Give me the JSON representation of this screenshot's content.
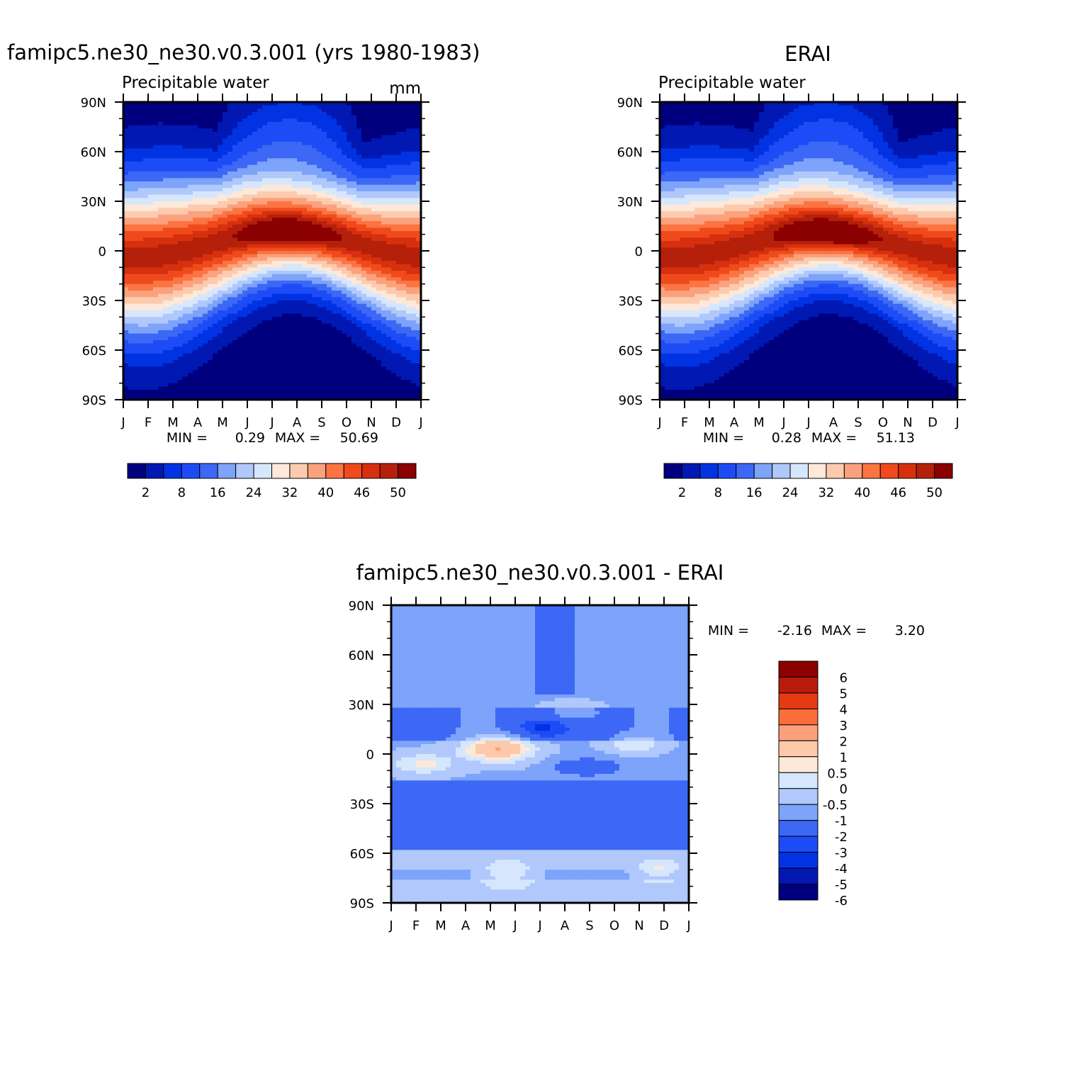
{
  "chart_data": [
    {
      "type": "heatmap",
      "title": "famipc5.ne30_ne30.v0.3.001 (yrs 1980-1983)",
      "left_label": "Precipitable water",
      "units": "mm",
      "x_tick_labels": [
        "J",
        "F",
        "M",
        "A",
        "M",
        "J",
        "J",
        "A",
        "S",
        "O",
        "N",
        "D",
        "J"
      ],
      "y_tick_labels": [
        "90N",
        "60N",
        "30N",
        "0",
        "30S",
        "60S",
        "90S"
      ],
      "ylim": [
        -90,
        90
      ],
      "min_label": "MIN =",
      "min_value": "0.29",
      "max_label": "MAX =",
      "max_value": "50.69",
      "colorbar_labels": [
        "2",
        "8",
        "16",
        "24",
        "32",
        "40",
        "46",
        "50"
      ],
      "peak_month": 6.6,
      "peak_lat": 9,
      "peak_value": 50.69,
      "min_value_num": 0.29
    },
    {
      "type": "heatmap",
      "title": "ERAI",
      "left_label": "Precipitable water",
      "x_tick_labels": [
        "J",
        "F",
        "M",
        "A",
        "M",
        "J",
        "J",
        "A",
        "S",
        "O",
        "N",
        "D",
        "J"
      ],
      "y_tick_labels": [
        "90N",
        "60N",
        "30N",
        "0",
        "30S",
        "60S",
        "90S"
      ],
      "ylim": [
        -90,
        90
      ],
      "min_label": "MIN =",
      "min_value": "0.28",
      "max_label": "MAX =",
      "max_value": "51.13",
      "colorbar_labels": [
        "2",
        "8",
        "16",
        "24",
        "32",
        "40",
        "46",
        "50"
      ],
      "peak_month": 6.8,
      "peak_lat": 7,
      "peak_value": 51.13,
      "min_value_num": 0.28
    },
    {
      "type": "heatmap",
      "title": "famipc5.ne30_ne30.v0.3.001 - ERAI",
      "x_tick_labels": [
        "J",
        "F",
        "M",
        "A",
        "M",
        "J",
        "J",
        "A",
        "S",
        "O",
        "N",
        "D",
        "J"
      ],
      "y_tick_labels": [
        "90N",
        "60N",
        "30N",
        "0",
        "30S",
        "60S",
        "90S"
      ],
      "ylim": [
        -90,
        90
      ],
      "min_label": "MIN =",
      "min_value": "-2.16",
      "max_label": "MAX =",
      "max_value": "3.20",
      "colorbar_labels": [
        "6",
        "5",
        "4",
        "3",
        "2",
        "1",
        "0.5",
        "0",
        "-0.5",
        "-1",
        "-2",
        "-3",
        "-4",
        "-5",
        "-6"
      ]
    }
  ],
  "palettes": {
    "absolute": [
      "#00007f",
      "#0118b2",
      "#0133e3",
      "#1d4cf7",
      "#3c68f5",
      "#7da3fa",
      "#b0c8fb",
      "#d6e7fd",
      "#fde8d9",
      "#fccbae",
      "#fba17d",
      "#fb7442",
      "#f04a1c",
      "#d6300e",
      "#b5200b",
      "#8b0000"
    ],
    "difference": [
      "#8b0000",
      "#b91c0a",
      "#e63a12",
      "#fa6e3a",
      "#fba07a",
      "#fcc9aa",
      "#fde9d8",
      "#d6e7fd",
      "#b0c8fb",
      "#7da3fa",
      "#3c68f5",
      "#1d4cf7",
      "#0133e3",
      "#0118b2",
      "#00007f"
    ]
  },
  "absolute_levels": [
    2,
    5,
    8,
    12,
    16,
    20,
    24,
    28,
    32,
    36,
    40,
    43,
    46,
    48,
    50
  ],
  "difference_levels": [
    -6,
    -5,
    -4,
    -3,
    -2,
    -1,
    -0.5,
    0,
    0.5,
    1,
    2,
    3,
    4,
    5,
    6
  ]
}
